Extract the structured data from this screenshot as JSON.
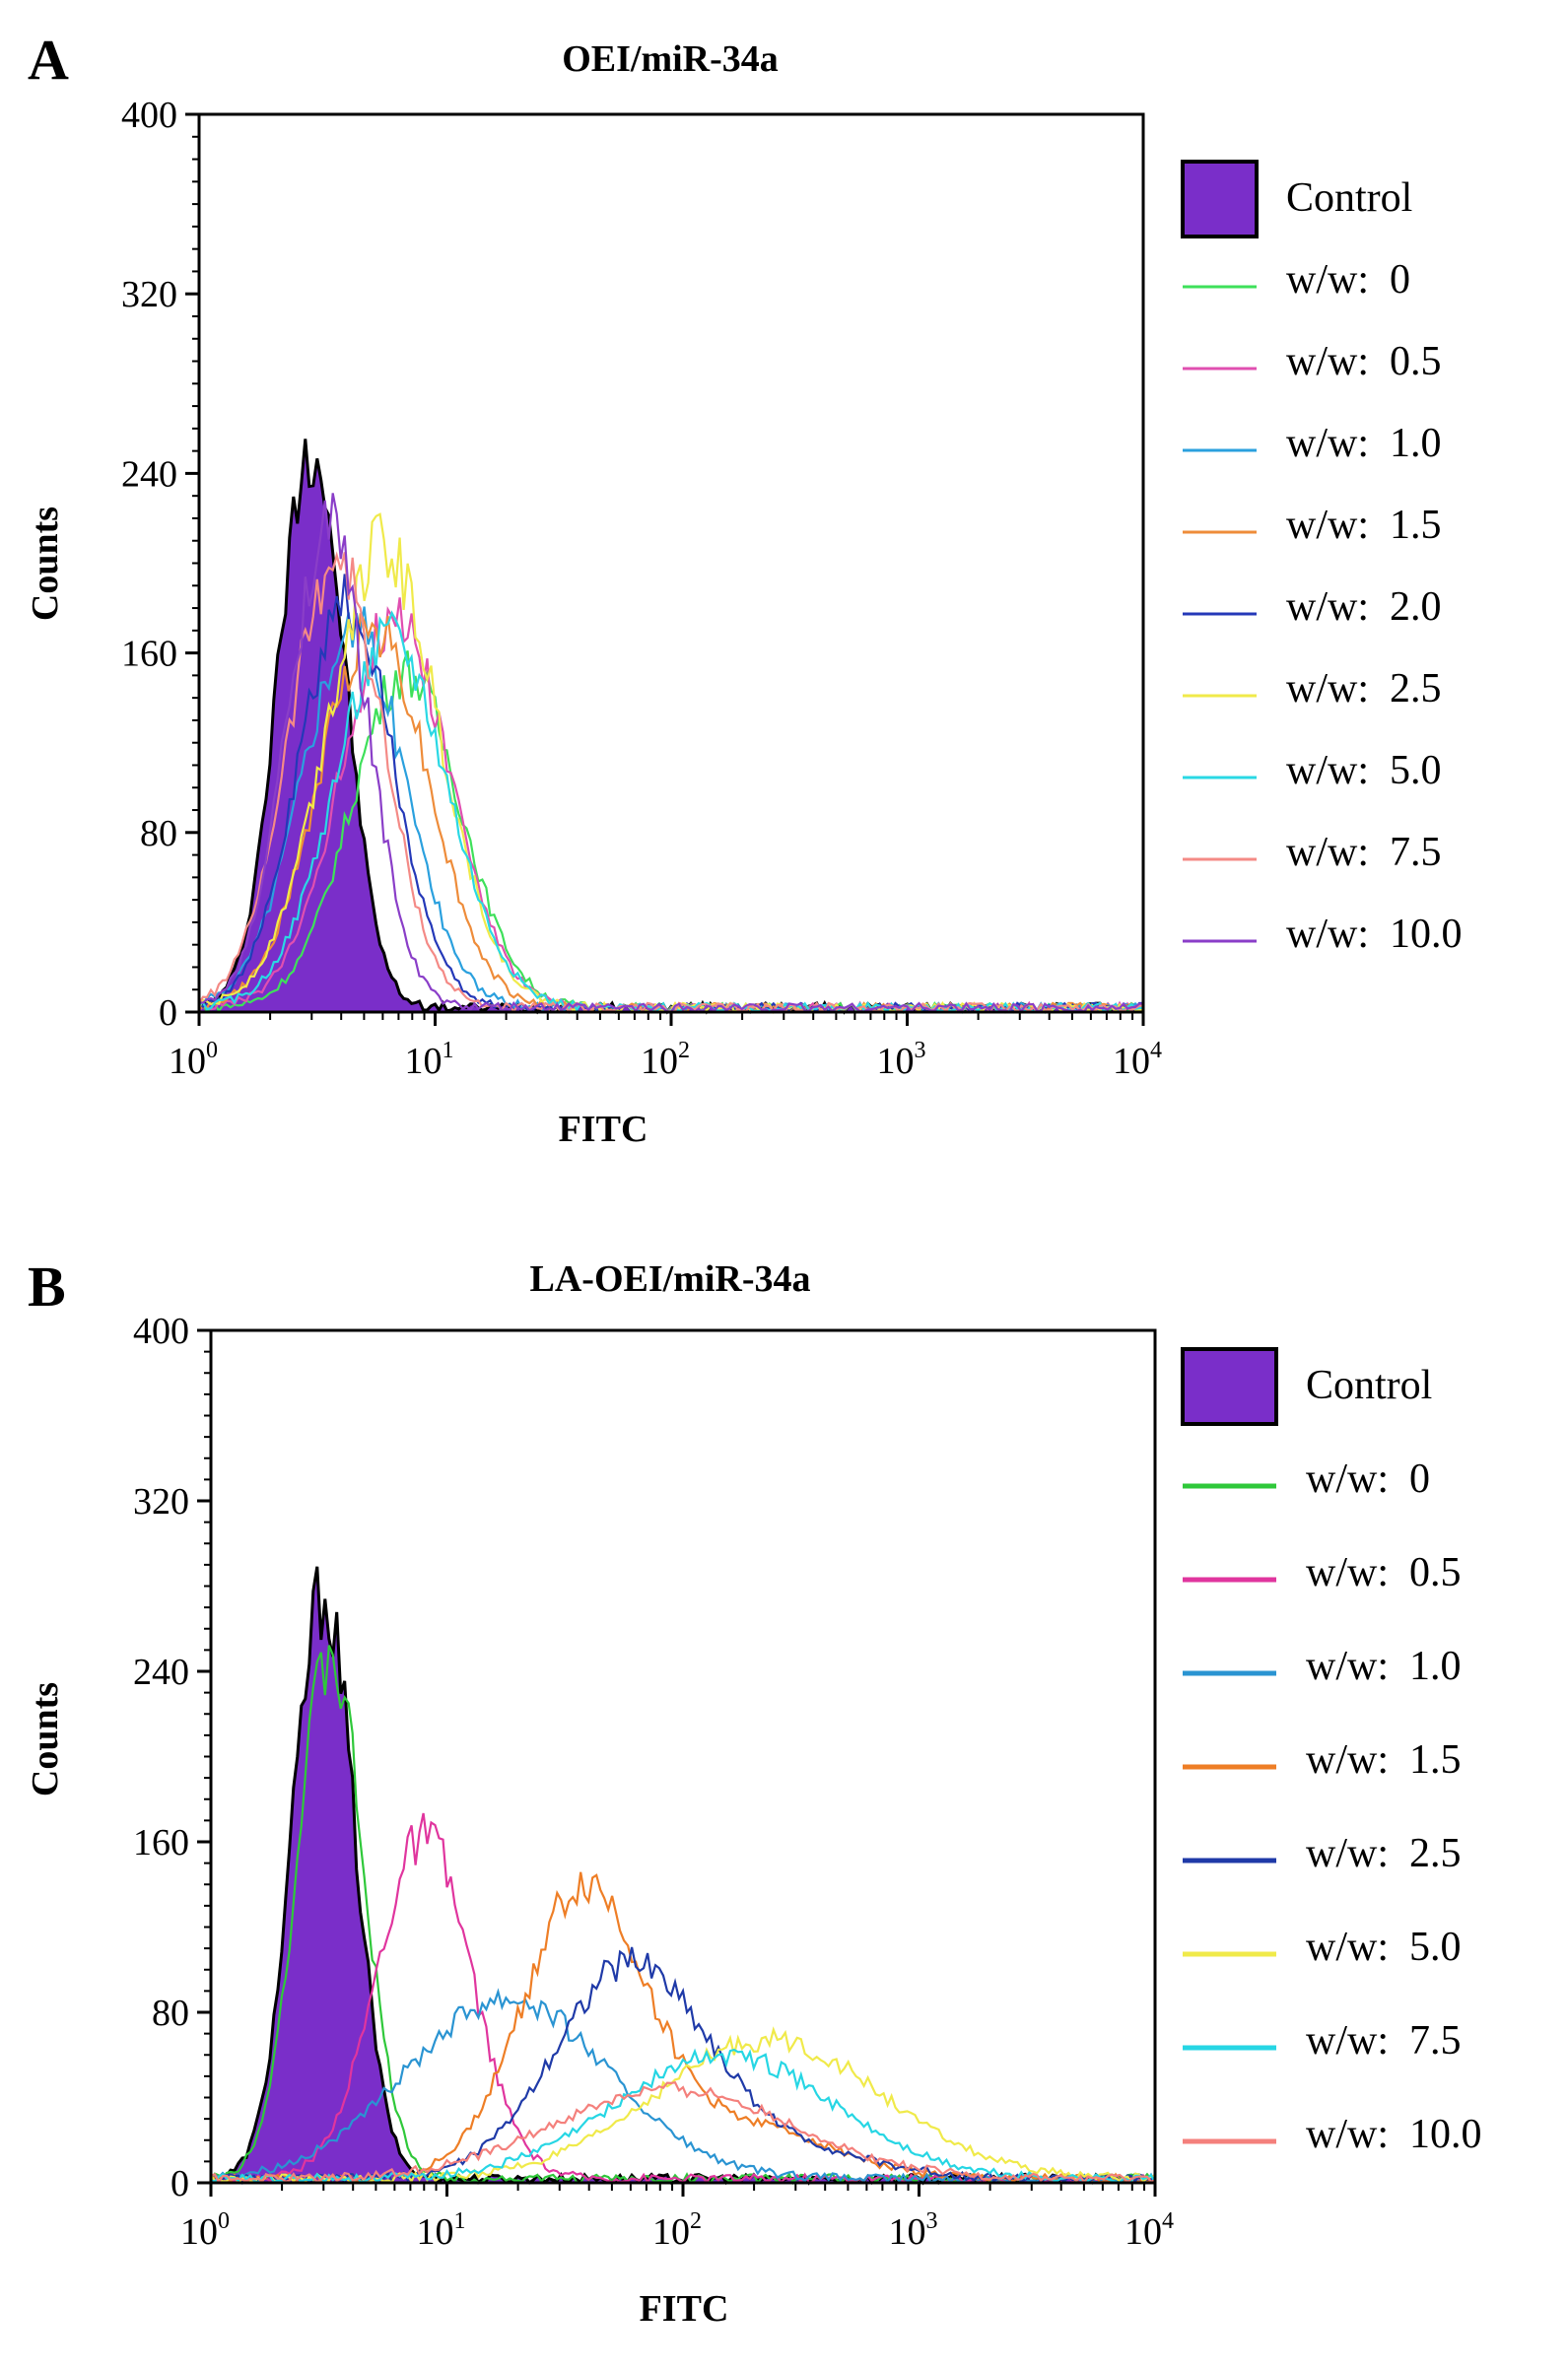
{
  "chart_data": [
    {
      "id": "A",
      "panel_label": "A",
      "type": "histogram",
      "title": "OEI/miR-34a",
      "xlabel": "FITC",
      "ylabel": "Counts",
      "xscale": "log",
      "xlim": [
        1,
        10000
      ],
      "ylim": [
        0,
        400
      ],
      "yticks": [
        0,
        80,
        160,
        240,
        320,
        400
      ],
      "xticks": [
        {
          "base": "10",
          "exp": "0"
        },
        {
          "base": "10",
          "exp": "1"
        },
        {
          "base": "10",
          "exp": "2"
        },
        {
          "base": "10",
          "exp": "3"
        },
        {
          "base": "10",
          "exp": "4"
        }
      ],
      "legend_position": "right",
      "series": [
        {
          "name": "Control",
          "label": "Control",
          "color": "#7a2ec9",
          "filled": true,
          "peak_x": 3.0,
          "peak_y": 252,
          "width": 0.14,
          "tail": 0.0
        },
        {
          "name": "w/w: 0",
          "label": "w/w:  0",
          "color": "#3ee05a",
          "filled": false,
          "peak_x": 7.5,
          "peak_y": 150,
          "width": 0.23,
          "tail": 0.0
        },
        {
          "name": "w/w: 0.5",
          "label": "w/w:  0.5",
          "color": "#e04fb0",
          "filled": false,
          "peak_x": 6.8,
          "peak_y": 175,
          "width": 0.23,
          "tail": 0.0
        },
        {
          "name": "w/w: 1.0",
          "label": "w/w:  1.0",
          "color": "#2aa0de",
          "filled": false,
          "peak_x": 4.5,
          "peak_y": 170,
          "width": 0.22,
          "tail": 0.0
        },
        {
          "name": "w/w: 1.5",
          "label": "w/w:  1.5",
          "color": "#ee8c3a",
          "filled": false,
          "peak_x": 5.5,
          "peak_y": 170,
          "width": 0.23,
          "tail": 0.0
        },
        {
          "name": "w/w: 2.0",
          "label": "w/w:  2.0",
          "color": "#2438b8",
          "filled": false,
          "peak_x": 4.2,
          "peak_y": 180,
          "width": 0.2,
          "tail": 0.0
        },
        {
          "name": "w/w: 2.5",
          "label": "w/w:  2.5",
          "color": "#f0ea4a",
          "filled": false,
          "peak_x": 6.0,
          "peak_y": 205,
          "width": 0.24,
          "tail": 0.0
        },
        {
          "name": "w/w: 5.0",
          "label": "w/w:  5.0",
          "color": "#2ad8e4",
          "filled": false,
          "peak_x": 6.5,
          "peak_y": 165,
          "width": 0.24,
          "tail": 0.0
        },
        {
          "name": "w/w: 7.5",
          "label": "w/w:  7.5",
          "color": "#f48a86",
          "filled": false,
          "peak_x": 3.8,
          "peak_y": 200,
          "width": 0.2,
          "tail": 0.0
        },
        {
          "name": "w/w: 10.0",
          "label": "w/w:  10.0",
          "color": "#8a3ec8",
          "filled": false,
          "peak_x": 3.5,
          "peak_y": 215,
          "width": 0.17,
          "tail": 0.0
        }
      ]
    },
    {
      "id": "B",
      "panel_label": "B",
      "type": "histogram",
      "title": "LA-OEI/miR-34a",
      "xlabel": "FITC",
      "ylabel": "Counts",
      "xscale": "log",
      "xlim": [
        1,
        10000
      ],
      "ylim": [
        0,
        400
      ],
      "yticks": [
        0,
        80,
        160,
        240,
        320,
        400
      ],
      "xticks": [
        {
          "base": "10",
          "exp": "0"
        },
        {
          "base": "10",
          "exp": "1"
        },
        {
          "base": "10",
          "exp": "2"
        },
        {
          "base": "10",
          "exp": "3"
        },
        {
          "base": "10",
          "exp": "4"
        }
      ],
      "legend_position": "right",
      "series": [
        {
          "name": "Control",
          "label": "Control",
          "color": "#7a2ec9",
          "filled": true,
          "peak_x": 3.0,
          "peak_y": 275,
          "width": 0.13,
          "tail": 0.0
        },
        {
          "name": "w/w: 0",
          "label": "w/w:  0",
          "color": "#2fc83a",
          "filled": false,
          "peak_x": 3.2,
          "peak_y": 245,
          "width": 0.14,
          "tail": 0.0
        },
        {
          "name": "w/w: 0.5",
          "label": "w/w:  0.5",
          "color": "#e0359e",
          "filled": false,
          "peak_x": 8.0,
          "peak_y": 160,
          "width": 0.2,
          "tail": 0.0
        },
        {
          "name": "w/w: 1.0",
          "label": "w/w:  1.0",
          "color": "#2a94d2",
          "filled": false,
          "peak_x": 18.0,
          "peak_y": 85,
          "width": 0.42,
          "tail": 0.0
        },
        {
          "name": "w/w: 1.5",
          "label": "w/w:  1.5",
          "color": "#ee7e26",
          "filled": false,
          "peak_x": 38.0,
          "peak_y": 135,
          "width": 0.26,
          "tail": 0.18
        },
        {
          "name": "w/w: 2.5",
          "label": "w/w:  2.5",
          "color": "#1f3aa8",
          "filled": false,
          "peak_x": 60.0,
          "peak_y": 100,
          "width": 0.32,
          "tail": 0.12
        },
        {
          "name": "w/w: 5.0",
          "label": "w/w:  5.0",
          "color": "#f0ea4a",
          "filled": false,
          "peak_x": 230.0,
          "peak_y": 65,
          "width": 0.48,
          "tail": 0.0
        },
        {
          "name": "w/w: 7.5",
          "label": "w/w:  7.5",
          "color": "#26d6e4",
          "filled": false,
          "peak_x": 150.0,
          "peak_y": 58,
          "width": 0.46,
          "tail": 0.0
        },
        {
          "name": "w/w: 10.0",
          "label": "w/w:  10.0",
          "color": "#f4807c",
          "filled": false,
          "peak_x": 90.0,
          "peak_y": 42,
          "width": 0.5,
          "tail": 0.0
        }
      ]
    }
  ]
}
